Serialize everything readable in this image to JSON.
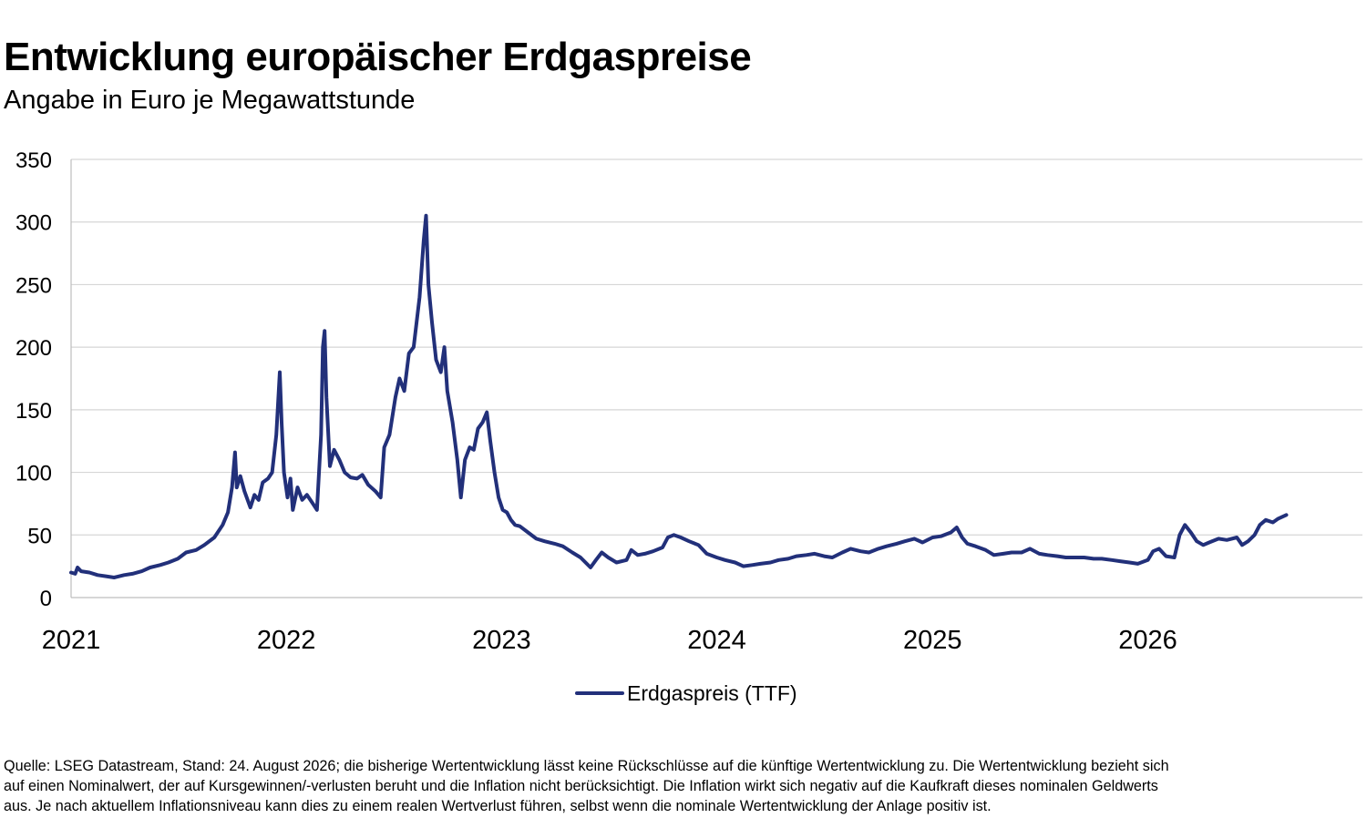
{
  "header": {
    "title": "Entwicklung europäischer Erdgaspreise",
    "subtitle": "Angabe in Euro je Megawattstunde"
  },
  "chart_data": {
    "type": "line",
    "xlabel": "",
    "ylabel": "",
    "xlim": [
      "2021-01-01",
      "2026-12-31"
    ],
    "ylim": [
      0,
      350
    ],
    "yticks": [
      0,
      50,
      100,
      150,
      200,
      250,
      300,
      350
    ],
    "xticks": [
      "2021",
      "2022",
      "2023",
      "2024",
      "2025",
      "2026"
    ],
    "grid": "horizontal",
    "legend_position": "bottom-center",
    "colors": {
      "series": "#22307a",
      "grid": "#d6d6d6",
      "axis": "#bdbdbd"
    },
    "series": [
      {
        "name": "Erdgaspreis (TTF)",
        "points": [
          [
            "2021-01-01",
            20
          ],
          [
            "2021-01-08",
            19
          ],
          [
            "2021-01-12",
            24
          ],
          [
            "2021-01-18",
            21
          ],
          [
            "2021-02-01",
            20
          ],
          [
            "2021-02-15",
            18
          ],
          [
            "2021-03-01",
            17
          ],
          [
            "2021-03-15",
            16
          ],
          [
            "2021-04-01",
            18
          ],
          [
            "2021-04-15",
            19
          ],
          [
            "2021-05-01",
            21
          ],
          [
            "2021-05-15",
            24
          ],
          [
            "2021-06-01",
            26
          ],
          [
            "2021-06-15",
            28
          ],
          [
            "2021-07-01",
            31
          ],
          [
            "2021-07-15",
            36
          ],
          [
            "2021-08-01",
            38
          ],
          [
            "2021-08-15",
            42
          ],
          [
            "2021-09-01",
            48
          ],
          [
            "2021-09-15",
            58
          ],
          [
            "2021-09-24",
            68
          ],
          [
            "2021-10-01",
            88
          ],
          [
            "2021-10-06",
            116
          ],
          [
            "2021-10-09",
            88
          ],
          [
            "2021-10-15",
            97
          ],
          [
            "2021-10-22",
            85
          ],
          [
            "2021-11-01",
            72
          ],
          [
            "2021-11-08",
            82
          ],
          [
            "2021-11-15",
            78
          ],
          [
            "2021-11-22",
            92
          ],
          [
            "2021-12-01",
            95
          ],
          [
            "2021-12-08",
            100
          ],
          [
            "2021-12-15",
            130
          ],
          [
            "2021-12-21",
            180
          ],
          [
            "2021-12-24",
            140
          ],
          [
            "2021-12-28",
            100
          ],
          [
            "2022-01-03",
            80
          ],
          [
            "2022-01-08",
            95
          ],
          [
            "2022-01-12",
            70
          ],
          [
            "2022-01-20",
            88
          ],
          [
            "2022-01-28",
            78
          ],
          [
            "2022-02-05",
            82
          ],
          [
            "2022-02-15",
            75
          ],
          [
            "2022-02-22",
            70
          ],
          [
            "2022-03-01",
            130
          ],
          [
            "2022-03-04",
            200
          ],
          [
            "2022-03-07",
            213
          ],
          [
            "2022-03-10",
            160
          ],
          [
            "2022-03-16",
            105
          ],
          [
            "2022-03-23",
            118
          ],
          [
            "2022-04-01",
            110
          ],
          [
            "2022-04-10",
            100
          ],
          [
            "2022-04-20",
            96
          ],
          [
            "2022-05-01",
            95
          ],
          [
            "2022-05-10",
            98
          ],
          [
            "2022-05-20",
            90
          ],
          [
            "2022-06-01",
            85
          ],
          [
            "2022-06-10",
            80
          ],
          [
            "2022-06-16",
            120
          ],
          [
            "2022-06-25",
            130
          ],
          [
            "2022-07-05",
            160
          ],
          [
            "2022-07-12",
            175
          ],
          [
            "2022-07-20",
            165
          ],
          [
            "2022-07-28",
            195
          ],
          [
            "2022-08-05",
            200
          ],
          [
            "2022-08-15",
            240
          ],
          [
            "2022-08-22",
            285
          ],
          [
            "2022-08-26",
            305
          ],
          [
            "2022-08-30",
            250
          ],
          [
            "2022-09-05",
            220
          ],
          [
            "2022-09-12",
            190
          ],
          [
            "2022-09-20",
            180
          ],
          [
            "2022-09-26",
            200
          ],
          [
            "2022-10-01",
            165
          ],
          [
            "2022-10-10",
            140
          ],
          [
            "2022-10-18",
            110
          ],
          [
            "2022-10-24",
            80
          ],
          [
            "2022-10-31",
            110
          ],
          [
            "2022-11-08",
            120
          ],
          [
            "2022-11-15",
            118
          ],
          [
            "2022-11-22",
            135
          ],
          [
            "2022-11-30",
            140
          ],
          [
            "2022-12-07",
            148
          ],
          [
            "2022-12-13",
            125
          ],
          [
            "2022-12-20",
            100
          ],
          [
            "2022-12-27",
            80
          ],
          [
            "2023-01-03",
            70
          ],
          [
            "2023-01-10",
            68
          ],
          [
            "2023-01-17",
            62
          ],
          [
            "2023-01-24",
            58
          ],
          [
            "2023-02-01",
            57
          ],
          [
            "2023-02-15",
            52
          ],
          [
            "2023-03-01",
            47
          ],
          [
            "2023-03-15",
            45
          ],
          [
            "2023-04-01",
            43
          ],
          [
            "2023-04-15",
            41
          ],
          [
            "2023-05-01",
            36
          ],
          [
            "2023-05-15",
            32
          ],
          [
            "2023-06-01",
            24
          ],
          [
            "2023-06-10",
            30
          ],
          [
            "2023-06-20",
            36
          ],
          [
            "2023-07-01",
            32
          ],
          [
            "2023-07-15",
            28
          ],
          [
            "2023-08-01",
            30
          ],
          [
            "2023-08-09",
            38
          ],
          [
            "2023-08-20",
            34
          ],
          [
            "2023-09-01",
            35
          ],
          [
            "2023-09-15",
            37
          ],
          [
            "2023-10-01",
            40
          ],
          [
            "2023-10-10",
            48
          ],
          [
            "2023-10-20",
            50
          ],
          [
            "2023-11-01",
            48
          ],
          [
            "2023-11-15",
            45
          ],
          [
            "2023-12-01",
            42
          ],
          [
            "2023-12-15",
            35
          ],
          [
            "2024-01-01",
            32
          ],
          [
            "2024-01-15",
            30
          ],
          [
            "2024-02-01",
            28
          ],
          [
            "2024-02-15",
            25
          ],
          [
            "2024-03-01",
            26
          ],
          [
            "2024-03-15",
            27
          ],
          [
            "2024-04-01",
            28
          ],
          [
            "2024-04-15",
            30
          ],
          [
            "2024-05-01",
            31
          ],
          [
            "2024-05-15",
            33
          ],
          [
            "2024-06-01",
            34
          ],
          [
            "2024-06-15",
            35
          ],
          [
            "2024-07-01",
            33
          ],
          [
            "2024-07-15",
            32
          ],
          [
            "2024-08-01",
            36
          ],
          [
            "2024-08-15",
            39
          ],
          [
            "2024-09-01",
            37
          ],
          [
            "2024-09-15",
            36
          ],
          [
            "2024-10-01",
            39
          ],
          [
            "2024-10-15",
            41
          ],
          [
            "2024-11-01",
            43
          ],
          [
            "2024-11-15",
            45
          ],
          [
            "2024-12-01",
            47
          ],
          [
            "2024-12-15",
            44
          ],
          [
            "2025-01-01",
            48
          ],
          [
            "2025-01-15",
            49
          ],
          [
            "2025-02-01",
            52
          ],
          [
            "2025-02-11",
            56
          ],
          [
            "2025-02-20",
            48
          ],
          [
            "2025-03-01",
            43
          ],
          [
            "2025-03-15",
            41
          ],
          [
            "2025-04-01",
            38
          ],
          [
            "2025-04-15",
            34
          ],
          [
            "2025-05-01",
            35
          ],
          [
            "2025-05-15",
            36
          ],
          [
            "2025-06-01",
            36
          ],
          [
            "2025-06-15",
            39
          ],
          [
            "2025-07-01",
            35
          ],
          [
            "2025-07-15",
            34
          ],
          [
            "2025-08-01",
            33
          ],
          [
            "2025-08-15",
            32
          ],
          [
            "2025-09-01",
            32
          ],
          [
            "2025-09-15",
            32
          ],
          [
            "2025-10-01",
            31
          ],
          [
            "2025-10-15",
            31
          ],
          [
            "2025-11-01",
            30
          ],
          [
            "2025-11-15",
            29
          ],
          [
            "2025-12-01",
            28
          ],
          [
            "2025-12-15",
            27
          ],
          [
            "2026-01-01",
            30
          ],
          [
            "2026-01-10",
            37
          ],
          [
            "2026-01-20",
            39
          ],
          [
            "2026-02-01",
            33
          ],
          [
            "2026-02-15",
            32
          ],
          [
            "2026-02-24",
            50
          ],
          [
            "2026-03-05",
            58
          ],
          [
            "2026-03-15",
            52
          ],
          [
            "2026-03-25",
            45
          ],
          [
            "2026-04-05",
            42
          ],
          [
            "2026-04-15",
            44
          ],
          [
            "2026-05-01",
            47
          ],
          [
            "2026-05-15",
            46
          ],
          [
            "2026-06-01",
            48
          ],
          [
            "2026-06-10",
            42
          ],
          [
            "2026-06-20",
            45
          ],
          [
            "2026-07-01",
            50
          ],
          [
            "2026-07-10",
            58
          ],
          [
            "2026-07-20",
            62
          ],
          [
            "2026-08-01",
            60
          ],
          [
            "2026-08-10",
            63
          ],
          [
            "2026-08-24",
            66
          ]
        ]
      }
    ]
  },
  "footer": {
    "note": "Quelle: LSEG Datastream, Stand: 24. August 2026; die bisherige Wertentwicklung lässt keine Rückschlüsse auf die künftige Wertentwicklung zu. Die Wertentwicklung bezieht sich\nauf einen Nominalwert, der auf Kursgewinnen/-verlusten beruht und die Inflation nicht berücksichtigt. Die Inflation wirkt sich negativ auf die Kaufkraft dieses nominalen Geldwerts\naus. Je nach aktuellem Inflationsniveau kann dies zu einem realen Wertverlust führen, selbst wenn die nominale Wertentwicklung der Anlage positiv ist."
  }
}
